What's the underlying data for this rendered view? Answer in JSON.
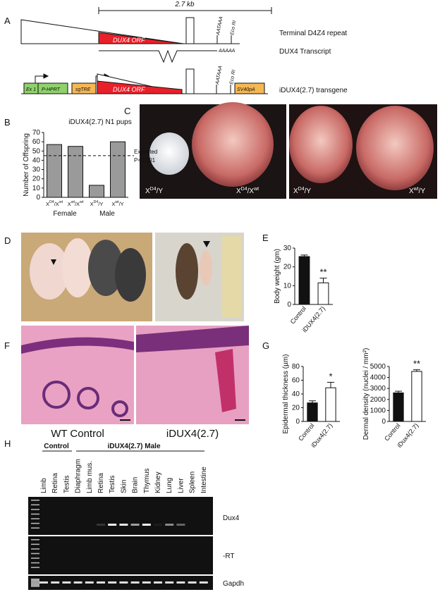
{
  "panels": [
    "A",
    "B",
    "C",
    "D",
    "E",
    "F",
    "G",
    "H"
  ],
  "diagram": {
    "scale": "2.7 kb",
    "row1": {
      "orf": "DUX4 ORF",
      "polyA": "AATAAA",
      "site": "Eco RI",
      "label": "Terminal D4Z4 repeat"
    },
    "row2": {
      "tail": "AAAAA",
      "label": "DUX4 Transcript"
    },
    "row3": {
      "boxes": [
        "Ex 1",
        "P-HPRT",
        "sgTRE",
        "DUX4 ORF",
        "SV40pA"
      ],
      "polyA": "AATAAA",
      "site": "Eco RI",
      "label": "iDUX4(2.7) transgene"
    }
  },
  "photo_labels": [
    [
      "X",
      "D4",
      "/Y"
    ],
    [
      "X",
      "D4",
      "/X",
      "wt"
    ],
    [
      "X",
      "D4",
      "/Y"
    ],
    [
      "X",
      "wt",
      "/Y"
    ]
  ],
  "histology_captions": [
    "WT Control",
    "iDUX4(2.7)"
  ],
  "gel": {
    "groups": [
      "Control",
      "iDUX4(2.7) Male"
    ],
    "lanes": [
      "Limb",
      "Retina",
      "Testis",
      "Diaphragm",
      "Limb mus.",
      "Retina",
      "Testis",
      "Skin",
      "Brain",
      "Thymus",
      "Kidney",
      "Lung",
      "Liver",
      "Spleen",
      "Intestine"
    ],
    "rows": [
      "Dux4",
      "-RT",
      "Gapdh"
    ]
  },
  "chart_data": [
    {
      "type": "bar",
      "title": "iDUX4(2.7) N1 pups",
      "y_label": "Number of Offspring",
      "categories": [
        [
          "X",
          "D4",
          "/X",
          "wt"
        ],
        [
          "X",
          "wt",
          "/X",
          "wt"
        ],
        [
          "X",
          "D4",
          "/Y"
        ],
        [
          "X",
          "wt",
          "/Y"
        ]
      ],
      "groups": [
        "Female",
        "Male"
      ],
      "values": [
        57,
        55,
        13,
        60
      ],
      "color": "#9a9a9a",
      "reference": {
        "value": 45,
        "label": "Expected",
        "note": "P<0.001"
      },
      "ylim": [
        0,
        70
      ],
      "yticks": [
        0,
        10,
        20,
        30,
        40,
        50,
        60,
        70
      ]
    },
    {
      "type": "bar",
      "y_label": "Body weight (gm)",
      "categories": [
        "Control",
        "iDUX4(2.7)"
      ],
      "values": [
        25.5,
        11.5
      ],
      "errors": [
        0.8,
        2.5
      ],
      "colors": [
        "#111111",
        "#ffffff"
      ],
      "annotations": [
        null,
        "**"
      ],
      "ylim": [
        0,
        30
      ],
      "yticks": [
        0,
        10,
        20,
        30
      ]
    },
    {
      "type": "bar",
      "y_label": "Epidermal thickness (µm)",
      "categories": [
        "Control",
        "iDux4(2.7)"
      ],
      "values": [
        27,
        49
      ],
      "errors": [
        3,
        8
      ],
      "colors": [
        "#111111",
        "#ffffff"
      ],
      "annotations": [
        null,
        "*"
      ],
      "ylim": [
        0,
        80
      ],
      "yticks": [
        0,
        20,
        40,
        60,
        80
      ]
    },
    {
      "type": "bar",
      "y_label": "Dermal density (nuclei / mm²)",
      "categories": [
        "Control",
        "iDux4(2.7)"
      ],
      "values": [
        2600,
        4550
      ],
      "errors": [
        150,
        150
      ],
      "colors": [
        "#111111",
        "#ffffff"
      ],
      "annotations": [
        null,
        "**"
      ],
      "ylim": [
        0,
        5000
      ],
      "yticks": [
        0,
        1000,
        2000,
        3000,
        4000,
        5000
      ]
    }
  ]
}
